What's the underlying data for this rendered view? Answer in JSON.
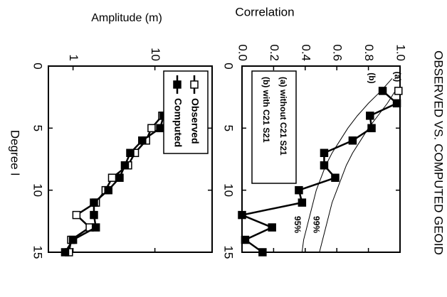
{
  "chart_data": [
    {
      "type": "line",
      "title": "OBSERVED VS. COMPUTED GEOID",
      "ylabel": "Correlation",
      "xlim": [
        0,
        15
      ],
      "xticks": [
        0,
        5,
        10,
        15
      ],
      "ylim": [
        0,
        1
      ],
      "yticks": [
        {
          "value": 0,
          "label": "0.0"
        },
        0.2,
        0.4,
        0.6,
        0.8,
        {
          "value": 1,
          "label": "1.0"
        }
      ],
      "legend": "lower left",
      "series": [
        {
          "name": "(a) without C21 S21",
          "tag": "(a)",
          "marker": "open",
          "color": "#000000",
          "x": [
            2
          ],
          "values": [
            0.99
          ]
        },
        {
          "name": "(b) with C21 S21",
          "tag": "(b)",
          "marker": "filled",
          "color": "#000000",
          "x": [
            2,
            3,
            4,
            5,
            6,
            7,
            8,
            9,
            10,
            11,
            12,
            13,
            14,
            15
          ],
          "values": [
            0.89,
            0.98,
            0.81,
            0.82,
            0.7,
            0.52,
            0.52,
            0.59,
            0.36,
            0.38,
            0.0,
            0.19,
            0.02,
            0.13
          ]
        }
      ],
      "reference_curves": [
        {
          "label": "95%",
          "x": [
            1,
            2,
            3,
            4,
            5,
            6,
            7,
            8,
            9,
            10,
            11,
            12,
            13,
            14,
            15
          ],
          "values": [
            0.95,
            0.88,
            0.8,
            0.73,
            0.67,
            0.62,
            0.57,
            0.53,
            0.5,
            0.47,
            0.45,
            0.43,
            0.41,
            0.39,
            0.38
          ]
        },
        {
          "label": "99%",
          "x": [
            2,
            3,
            4,
            5,
            6,
            7,
            8,
            9,
            10,
            11,
            12,
            13,
            14,
            15
          ],
          "values": [
            0.97,
            0.92,
            0.86,
            0.8,
            0.75,
            0.7,
            0.66,
            0.63,
            0.6,
            0.57,
            0.55,
            0.53,
            0.51,
            0.49
          ]
        }
      ]
    },
    {
      "type": "line",
      "ylabel": "Amplitude (m)",
      "xlabel": "Degree l",
      "log_y": true,
      "xlim": [
        0,
        15
      ],
      "xticks": [
        0,
        5,
        10,
        15
      ],
      "ylim": [
        0.5,
        50
      ],
      "yticks": [
        1,
        10
      ],
      "legend": "upper left",
      "series": [
        {
          "name": "Observed",
          "marker": "open",
          "color": "#000000",
          "x": [
            2,
            3,
            4,
            5,
            6,
            7,
            8,
            9,
            10,
            11,
            12,
            13,
            14,
            15
          ],
          "values": [
            37,
            17.3,
            12.3,
            9.1,
            7.8,
            5.7,
            4.7,
            3.0,
            2.5,
            1.9,
            1.1,
            1.6,
            0.95,
            0.89
          ]
        },
        {
          "name": "Computed",
          "marker": "filled",
          "color": "#000000",
          "x": [
            2,
            3,
            4,
            5,
            6,
            7,
            8,
            9,
            10,
            11,
            12,
            13,
            14,
            15
          ],
          "values": [
            37,
            17.3,
            12.8,
            11.6,
            7.0,
            5.0,
            4.3,
            3.7,
            2.7,
            1.8,
            1.8,
            1.9,
            1.0,
            0.8
          ]
        }
      ]
    }
  ]
}
